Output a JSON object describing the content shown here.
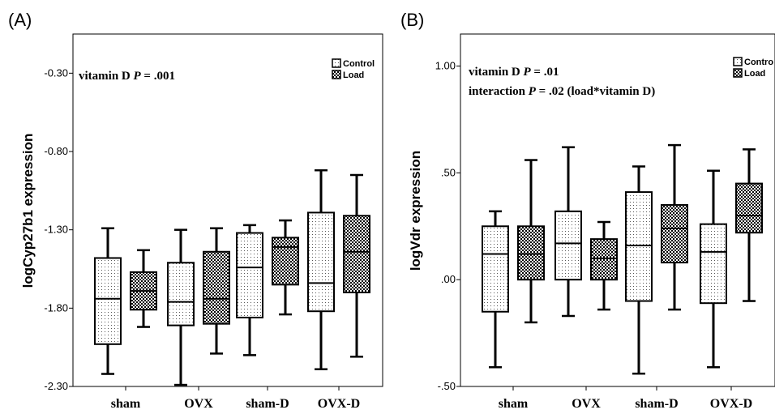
{
  "chart_data": [
    {
      "type": "box",
      "panel_label": "(A)",
      "ylabel": "logCyp27b1 expression",
      "ylim": [
        -2.3,
        -0.05
      ],
      "yticks": [
        -2.3,
        -1.8,
        -1.3,
        -0.8,
        -0.3
      ],
      "ytick_labels": [
        "-2.30",
        "-1.80",
        "-1.30",
        "-0.80",
        "-0.30"
      ],
      "categories": [
        "sham",
        "OVX",
        "sham-D",
        "OVX-D"
      ],
      "annotations": [
        {
          "prefix": "vitamin D ",
          "stat": "P",
          "suffix": " = .001"
        }
      ],
      "legend": {
        "position": "top-right",
        "entries": [
          "Control",
          "Load"
        ]
      },
      "grid": false,
      "series": [
        {
          "name": "Control",
          "pattern": "dots",
          "boxes": [
            {
              "min": -2.22,
              "q1": -2.03,
              "median": -1.74,
              "q3": -1.48,
              "max": -1.29
            },
            {
              "min": -2.29,
              "q1": -1.91,
              "median": -1.76,
              "q3": -1.51,
              "max": -1.3
            },
            {
              "min": -2.1,
              "q1": -1.86,
              "median": -1.54,
              "q3": -1.32,
              "max": -1.27
            },
            {
              "min": -2.19,
              "q1": -1.82,
              "median": -1.64,
              "q3": -1.19,
              "max": -0.92
            }
          ]
        },
        {
          "name": "Load",
          "pattern": "checker",
          "boxes": [
            {
              "min": -1.92,
              "q1": -1.81,
              "median": -1.69,
              "q3": -1.57,
              "max": -1.43
            },
            {
              "min": -2.09,
              "q1": -1.9,
              "median": -1.74,
              "q3": -1.44,
              "max": -1.29
            },
            {
              "min": -1.84,
              "q1": -1.65,
              "median": -1.41,
              "q3": -1.35,
              "max": -1.24
            },
            {
              "min": -2.11,
              "q1": -1.7,
              "median": -1.44,
              "q3": -1.21,
              "max": -0.95
            }
          ]
        }
      ]
    },
    {
      "type": "box",
      "panel_label": "(B)",
      "ylabel": "logVdr expression",
      "ylim": [
        -0.5,
        1.15
      ],
      "yticks": [
        -0.5,
        0.0,
        0.5,
        1.0
      ],
      "ytick_labels": [
        "-.50",
        ".00",
        ".50",
        "1.00"
      ],
      "categories": [
        "sham",
        "OVX",
        "sham-D",
        "OVX-D"
      ],
      "annotations": [
        {
          "prefix": "vitamin D ",
          "stat": "P",
          "suffix": " = .01"
        },
        {
          "prefix": "interaction ",
          "stat": "P",
          "suffix": " = .02 (load*vitamin D)"
        }
      ],
      "legend": {
        "position": "top-right",
        "entries": [
          "Contro",
          "Load"
        ]
      },
      "grid": false,
      "series": [
        {
          "name": "Contro",
          "pattern": "dots",
          "boxes": [
            {
              "min": -0.41,
              "q1": -0.15,
              "median": 0.12,
              "q3": 0.25,
              "max": 0.32
            },
            {
              "min": -0.17,
              "q1": 0.0,
              "median": 0.17,
              "q3": 0.32,
              "max": 0.62
            },
            {
              "min": -0.44,
              "q1": -0.1,
              "median": 0.16,
              "q3": 0.41,
              "max": 0.53
            },
            {
              "min": -0.41,
              "q1": -0.11,
              "median": 0.13,
              "q3": 0.26,
              "max": 0.51
            }
          ]
        },
        {
          "name": "Load",
          "pattern": "checker",
          "boxes": [
            {
              "min": -0.2,
              "q1": 0.0,
              "median": 0.12,
              "q3": 0.25,
              "max": 0.56
            },
            {
              "min": -0.14,
              "q1": 0.0,
              "median": 0.1,
              "q3": 0.19,
              "max": 0.27
            },
            {
              "min": -0.14,
              "q1": 0.08,
              "median": 0.24,
              "q3": 0.35,
              "max": 0.63
            },
            {
              "min": -0.1,
              "q1": 0.22,
              "median": 0.3,
              "q3": 0.45,
              "max": 0.61
            }
          ]
        }
      ]
    }
  ]
}
